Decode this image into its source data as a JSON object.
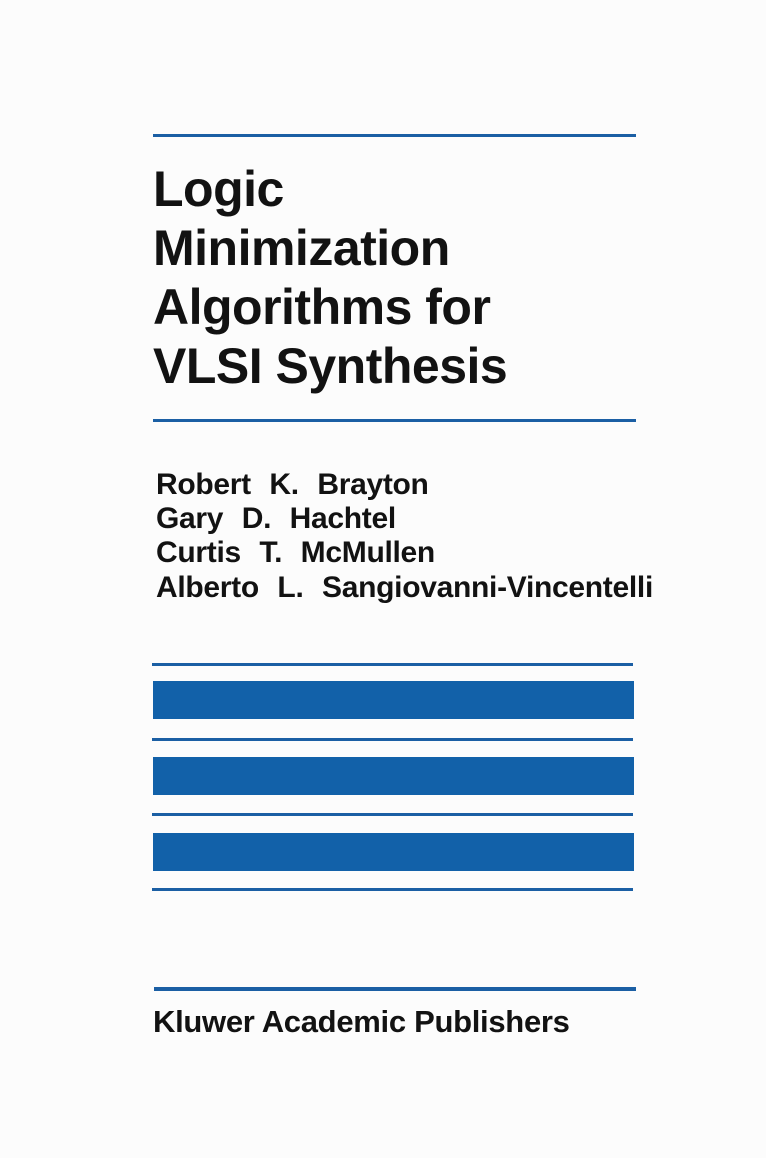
{
  "cover": {
    "title_lines": [
      "Logic",
      "Minimization",
      "Algorithms for",
      "VLSI Synthesis"
    ],
    "authors": [
      "Robert K. Brayton",
      "Gary D. Hachtel",
      "Curtis T. McMullen",
      "Alberto L. Sangiovanni-Vincentelli"
    ],
    "publisher": "Kluwer Academic Publishers",
    "accent_color": "#1261a9",
    "text_color": "#121212",
    "background_color": "#fcfcfc"
  }
}
